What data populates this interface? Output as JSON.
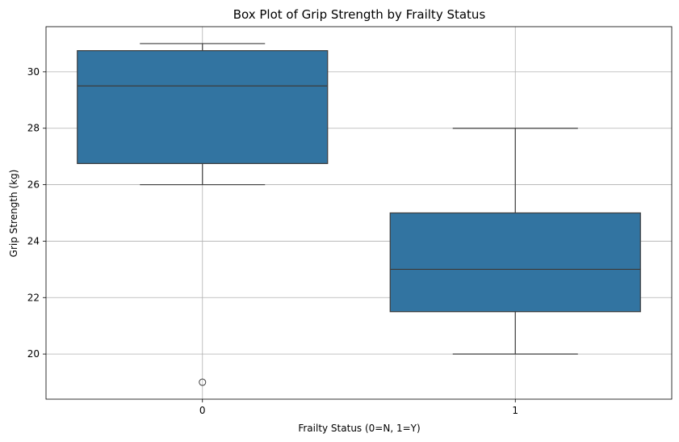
{
  "chart_data": {
    "type": "box",
    "title": "Box Plot of Grip Strength by Frailty Status",
    "xlabel": "Frailty Status (0=N, 1=Y)",
    "ylabel": "Grip Strength (kg)",
    "categories": [
      "0",
      "1"
    ],
    "ylim": [
      18.4,
      31.6
    ],
    "yticks": [
      20,
      22,
      24,
      26,
      28,
      30
    ],
    "grid": true,
    "box_color": "#3274a1",
    "line_color": "#3d3d3d",
    "grid_color": "#b0b0b0",
    "boxes": [
      {
        "category": "0",
        "whisker_low": 26,
        "q1": 26.75,
        "median": 29.5,
        "q3": 30.75,
        "whisker_high": 31,
        "outliers": [
          19
        ]
      },
      {
        "category": "1",
        "whisker_low": 20,
        "q1": 21.5,
        "median": 23,
        "q3": 25,
        "whisker_high": 28,
        "outliers": []
      }
    ]
  }
}
